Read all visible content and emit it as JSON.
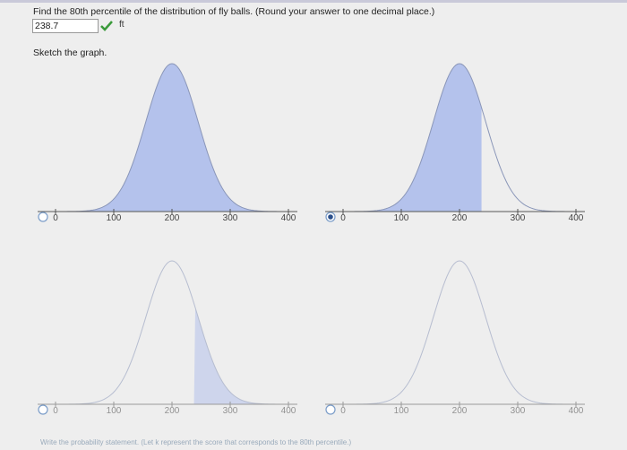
{
  "question": "Find the 80th percentile of the distribution of fly balls. (Round your answer to one decimal place.)",
  "answer": "238.7",
  "unit": "ft",
  "prompt": "Sketch the graph.",
  "graphs": [
    {
      "axis_labels": [
        "0",
        "100",
        "200",
        "300",
        "400"
      ]
    },
    {
      "axis_labels": [
        "0",
        "100",
        "200",
        "300",
        "400"
      ]
    },
    {
      "axis_labels": [
        "0",
        "100",
        "200",
        "300",
        "400"
      ]
    },
    {
      "axis_labels": [
        "0",
        "100",
        "200",
        "300",
        "400"
      ]
    }
  ],
  "footer": "Write the probability statement. (Let k represent the score that corresponds to the 80th percentile.)"
}
